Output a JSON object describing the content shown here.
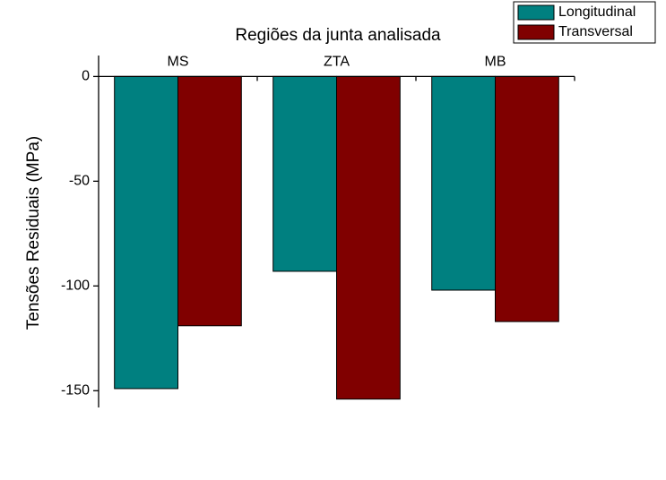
{
  "chart_data": {
    "type": "bar",
    "title": "Regiões da junta analisada",
    "y_label": "Tensões Residuais (MPa)",
    "categories": [
      "MS",
      "ZTA",
      "MB"
    ],
    "series": [
      {
        "name": "Longitudinal",
        "color": "#008080",
        "values": [
          -149,
          -93,
          -102
        ]
      },
      {
        "name": "Transversal",
        "color": "#800000",
        "values": [
          -119,
          -154,
          -117
        ]
      }
    ],
    "ylim": [
      -158,
      10
    ],
    "yticks": [
      0,
      -50,
      -100,
      -150
    ],
    "legend": "top-right"
  }
}
